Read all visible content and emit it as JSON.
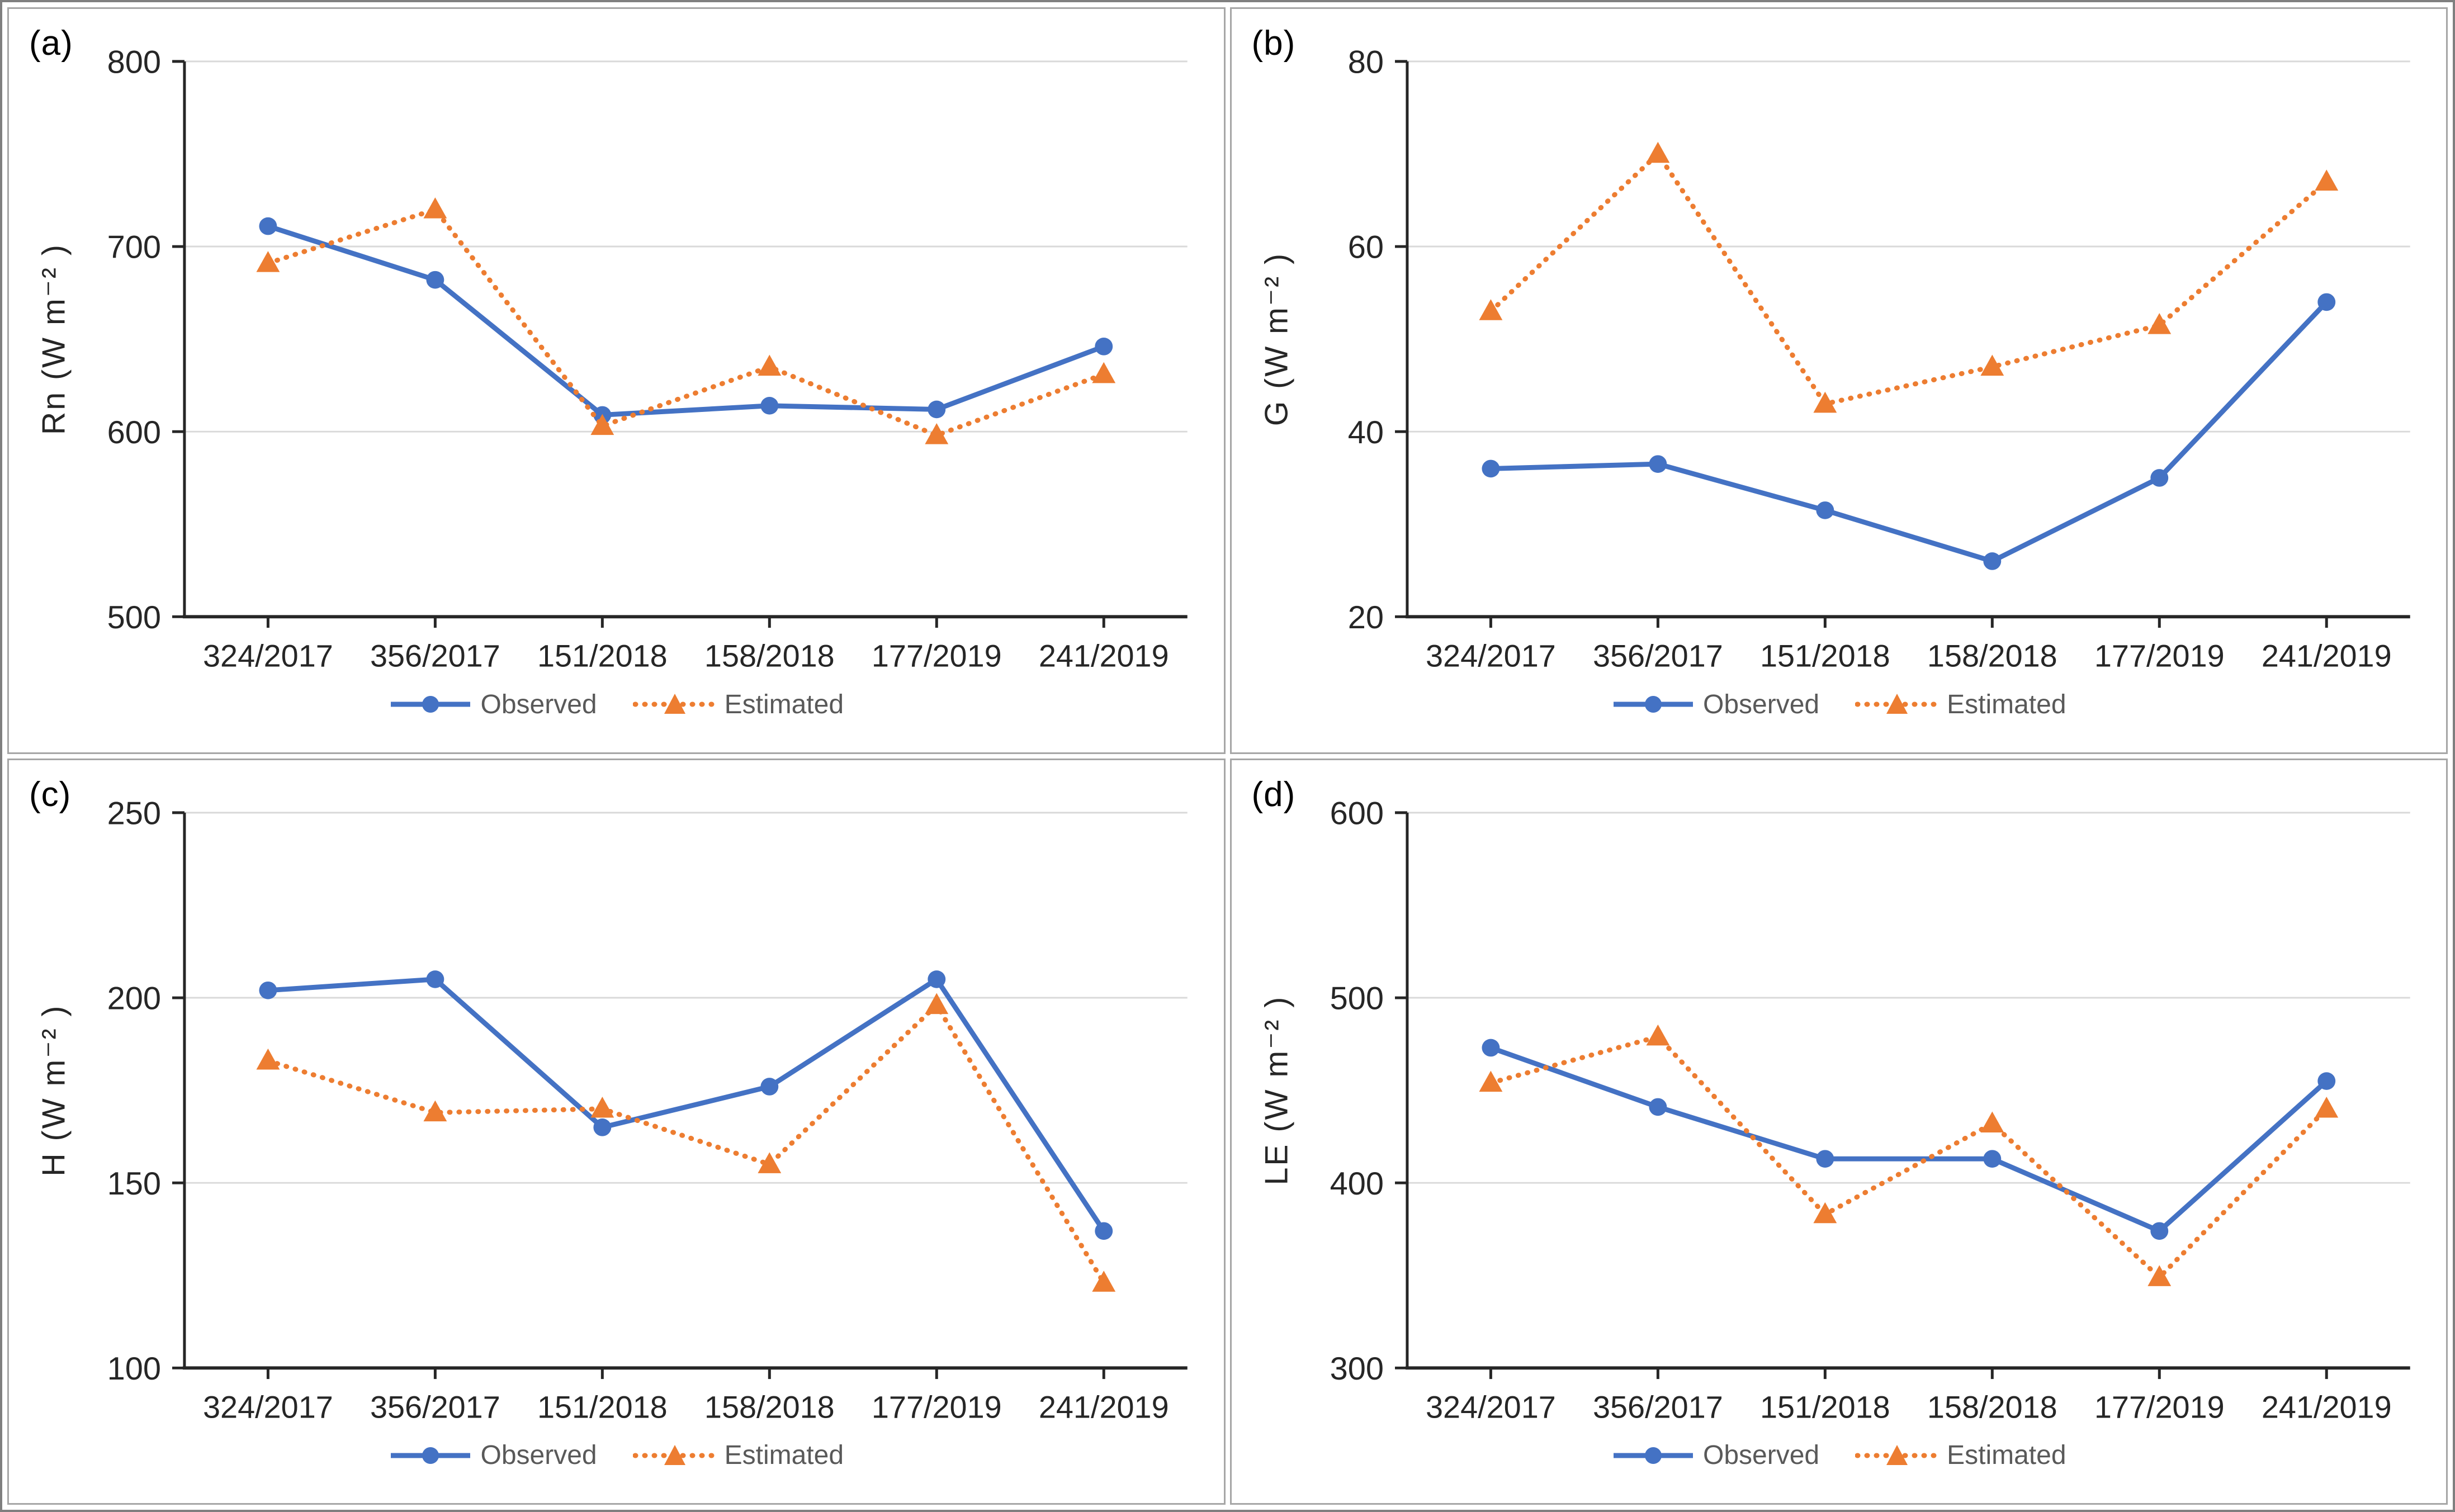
{
  "colors": {
    "observed": "#4472C4",
    "estimated": "#ED7D31",
    "grid": "#D9D9D9",
    "axis": "#262626",
    "tick_text": "#262626",
    "ylabel_text": "#262626",
    "legend_text": "#595959",
    "panel_border": "#A6A6A6",
    "figure_border": "#7F7F7F",
    "background": "#FFFFFF"
  },
  "chart_data": [
    {
      "type": "line",
      "panel_label": "(a)",
      "ylabel": "Rn  (W m⁻² )",
      "ylim": [
        500,
        800
      ],
      "yticks": [
        500,
        600,
        700,
        800
      ],
      "grid": true,
      "legend_position": "bottom",
      "categories": [
        "324/2017",
        "356/2017",
        "151/2018",
        "158/2018",
        "177/2019",
        "241/2019"
      ],
      "series": [
        {
          "name": "Observed",
          "marker": "circle",
          "line": "solid",
          "color_key": "observed",
          "values": [
            711,
            682,
            609,
            614,
            612,
            646
          ]
        },
        {
          "name": "Estimated",
          "marker": "triangle",
          "line": "dotted",
          "color_key": "estimated",
          "values": [
            691,
            720,
            603,
            635,
            598,
            631
          ]
        }
      ]
    },
    {
      "type": "line",
      "panel_label": "(b)",
      "ylabel": "G  (W m⁻² )",
      "ylim": [
        20,
        80
      ],
      "yticks": [
        20,
        40,
        60,
        80
      ],
      "grid": true,
      "legend_position": "bottom",
      "categories": [
        "324/2017",
        "356/2017",
        "151/2018",
        "158/2018",
        "177/2019",
        "241/2019"
      ],
      "series": [
        {
          "name": "Observed",
          "marker": "circle",
          "line": "solid",
          "color_key": "observed",
          "values": [
            36,
            36.5,
            31.5,
            26,
            35,
            54
          ]
        },
        {
          "name": "Estimated",
          "marker": "triangle",
          "line": "dotted",
          "color_key": "estimated",
          "values": [
            53,
            70,
            43,
            47,
            51.5,
            67
          ]
        }
      ]
    },
    {
      "type": "line",
      "panel_label": "(c)",
      "ylabel": "H  (W m⁻² )",
      "ylim": [
        100,
        250
      ],
      "yticks": [
        100,
        150,
        200,
        250
      ],
      "grid": true,
      "legend_position": "bottom",
      "categories": [
        "324/2017",
        "356/2017",
        "151/2018",
        "158/2018",
        "177/2019",
        "241/2019"
      ],
      "series": [
        {
          "name": "Observed",
          "marker": "circle",
          "line": "solid",
          "color_key": "observed",
          "values": [
            202,
            205,
            165,
            176,
            205,
            137
          ]
        },
        {
          "name": "Estimated",
          "marker": "triangle",
          "line": "dotted",
          "color_key": "estimated",
          "values": [
            183,
            169,
            170,
            155,
            198,
            123
          ]
        }
      ]
    },
    {
      "type": "line",
      "panel_label": "(d)",
      "ylabel": "LE  (W m⁻² )",
      "ylim": [
        300,
        600
      ],
      "yticks": [
        300,
        400,
        500,
        600
      ],
      "grid": true,
      "legend_position": "bottom",
      "categories": [
        "324/2017",
        "356/2017",
        "151/2018",
        "158/2018",
        "177/2019",
        "241/2019"
      ],
      "series": [
        {
          "name": "Observed",
          "marker": "circle",
          "line": "solid",
          "color_key": "observed",
          "values": [
            473,
            441,
            413,
            413,
            374,
            455
          ]
        },
        {
          "name": "Estimated",
          "marker": "triangle",
          "line": "dotted",
          "color_key": "estimated",
          "values": [
            454,
            479,
            383,
            432,
            349,
            440
          ]
        }
      ]
    }
  ]
}
